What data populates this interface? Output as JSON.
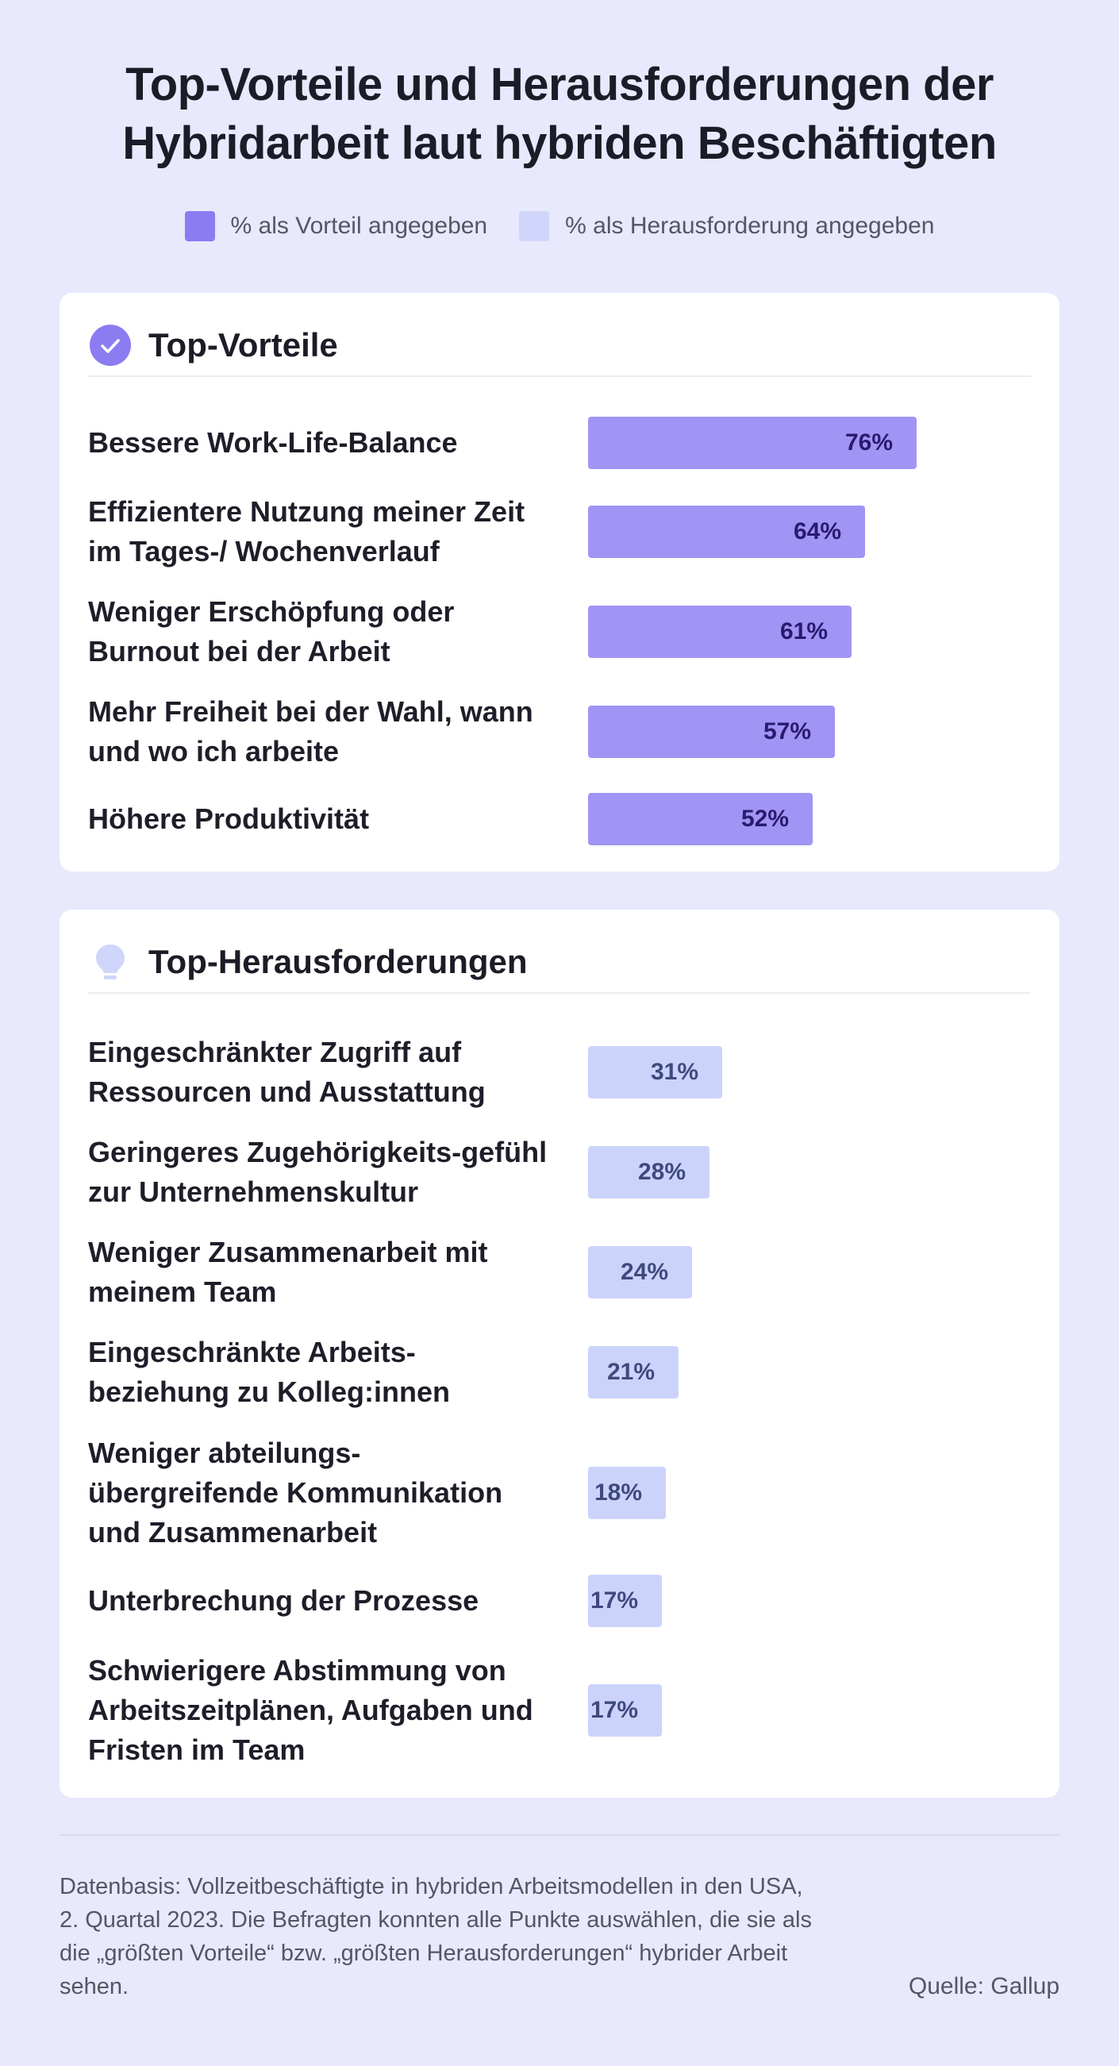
{
  "title": "Top-Vorteile und Herausforderungen der Hybridarbeit laut hybriden Beschäftigten",
  "legend": {
    "advantage_label": "% als Vorteil angegeben",
    "challenge_label": "% als Herausforderung angegeben"
  },
  "colors": {
    "advantage": "#a094f5",
    "challenge": "#ccd3fb",
    "background": "#e8e9fc"
  },
  "advantages": {
    "title": "Top-Vorteile",
    "icon": "check-circle-icon"
  },
  "challenges": {
    "title": "Top-Herausforderungen",
    "icon": "lightbulb-icon"
  },
  "chart_data": [
    {
      "type": "bar",
      "orientation": "horizontal",
      "title": "Top-Vorteile",
      "series_legend": "% als Vorteil angegeben",
      "categories": [
        "Bessere Work-Life-Balance",
        "Effizientere Nutzung meiner Zeit im Tages-/ Wochenverlauf",
        "Weniger Erschöpfung oder Burnout bei der Arbeit",
        "Mehr Freiheit bei der Wahl, wann und wo ich arbeite",
        "Höhere Produktivität"
      ],
      "values": [
        76,
        64,
        61,
        57,
        52
      ],
      "value_labels": [
        "76%",
        "64%",
        "61%",
        "57%",
        "52%"
      ],
      "xlim": [
        0,
        100
      ]
    },
    {
      "type": "bar",
      "orientation": "horizontal",
      "title": "Top-Herausforderungen",
      "series_legend": "% als Herausforderung angegeben",
      "categories": [
        "Eingeschränkter Zugriff auf Ressourcen und Ausstattung",
        "Geringeres Zugehörigkeits-gefühl zur Unternehmenskultur",
        "Weniger Zusammenarbeit mit meinem Team",
        "Eingeschränkte Arbeits-beziehung zu Kolleg:innen",
        "Weniger abteilungs-übergreifende Kommunikation und Zusammenarbeit",
        "Unterbrechung der Prozesse",
        "Schwierigere Abstimmung von Arbeitszeitplänen, Aufgaben und Fristen im Team"
      ],
      "values": [
        31,
        28,
        24,
        21,
        18,
        17,
        17
      ],
      "value_labels": [
        "31%",
        "28%",
        "24%",
        "21%",
        "18%",
        "17%",
        "17%"
      ],
      "xlim": [
        0,
        100
      ]
    }
  ],
  "footnote": "Datenbasis: Vollzeitbeschäftigte in hybriden Arbeitsmodellen in den USA, 2. Quartal 2023. Die Befragten konnten alle Punkte auswählen, die sie als die „größten Vorteile“ bzw. „größten Herausforderungen“ hybrider Arbeit sehen.",
  "source": "Quelle: Gallup"
}
